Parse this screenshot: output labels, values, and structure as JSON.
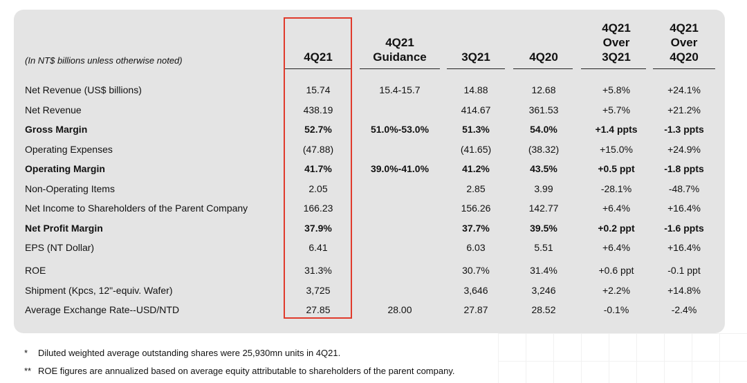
{
  "unit_note": "(In NT$ billions unless otherwise noted)",
  "columns": [
    {
      "id": "4q21",
      "lines": [
        "4Q21"
      ]
    },
    {
      "id": "guidance",
      "lines": [
        "4Q21",
        "Guidance"
      ]
    },
    {
      "id": "3q21",
      "lines": [
        "3Q21"
      ]
    },
    {
      "id": "4q20",
      "lines": [
        "4Q20"
      ]
    },
    {
      "id": "over3q21",
      "lines": [
        "4Q21",
        "Over",
        "3Q21"
      ]
    },
    {
      "id": "over4q20",
      "lines": [
        "4Q21",
        "Over",
        "4Q20"
      ]
    }
  ],
  "rows": [
    {
      "label": "Net Revenue (US$ billions)",
      "bold": false,
      "values": [
        "15.74",
        "15.4-15.7",
        "14.88",
        "12.68",
        "+5.8%",
        "+24.1%"
      ]
    },
    {
      "label": "Net Revenue",
      "bold": false,
      "values": [
        "438.19",
        "",
        "414.67",
        "361.53",
        "+5.7%",
        "+21.2%"
      ]
    },
    {
      "label": "Gross Margin",
      "bold": true,
      "values": [
        "52.7%",
        "51.0%-53.0%",
        "51.3%",
        "54.0%",
        "+1.4 ppts",
        "-1.3 ppts"
      ]
    },
    {
      "label": "Operating Expenses",
      "bold": false,
      "values": [
        "(47.88)",
        "",
        "(41.65)",
        "(38.32)",
        "+15.0%",
        "+24.9%"
      ]
    },
    {
      "label": "Operating Margin",
      "bold": true,
      "values": [
        "41.7%",
        "39.0%-41.0%",
        "41.2%",
        "43.5%",
        "+0.5 ppt",
        "-1.8 ppts"
      ]
    },
    {
      "label": "Non-Operating Items",
      "bold": false,
      "values": [
        "2.05",
        "",
        "2.85",
        "3.99",
        "-28.1%",
        "-48.7%"
      ]
    },
    {
      "label": "Net Income to Shareholders of the Parent Company",
      "bold": false,
      "values": [
        "166.23",
        "",
        "156.26",
        "142.77",
        "+6.4%",
        "+16.4%"
      ]
    },
    {
      "label": "Net Profit Margin",
      "bold": true,
      "values": [
        "37.9%",
        "",
        "37.7%",
        "39.5%",
        "+0.2 ppt",
        "-1.6 ppts"
      ]
    },
    {
      "label": "EPS (NT Dollar)",
      "bold": false,
      "values": [
        "6.41",
        "",
        "6.03",
        "5.51",
        "+6.4%",
        "+16.4%"
      ]
    },
    {
      "label": "ROE",
      "bold": false,
      "values": [
        "31.3%",
        "",
        "30.7%",
        "31.4%",
        "+0.6 ppt",
        "-0.1 ppt"
      ]
    },
    {
      "label": "Shipment (Kpcs, 12\"-equiv. Wafer)",
      "bold": false,
      "values": [
        "3,725",
        "",
        "3,646",
        "3,246",
        "+2.2%",
        "+14.8%"
      ]
    },
    {
      "label": "Average Exchange Rate--USD/NTD",
      "bold": false,
      "values": [
        "27.85",
        "28.00",
        "27.87",
        "28.52",
        "-0.1%",
        "-2.4%"
      ]
    }
  ],
  "footnotes": [
    {
      "marker": "*",
      "text": "Diluted weighted average outstanding shares were 25,930mn units in 4Q21."
    },
    {
      "marker": "**",
      "text": "ROE figures are annualized based on average equity attributable to shareholders of the parent company."
    }
  ],
  "colors": {
    "highlight": "#e03a2b",
    "panel": "#e4e4e4"
  }
}
